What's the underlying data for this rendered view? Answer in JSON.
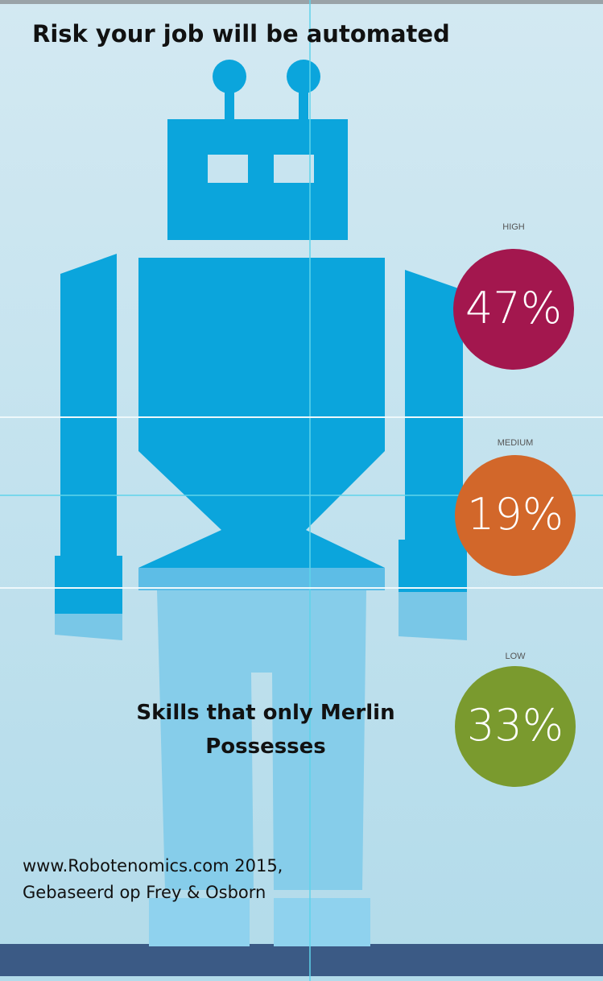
{
  "title": "Risk your job will be automated",
  "risk_levels": [
    {
      "label": "HIGH",
      "value": "47%",
      "color": "#a3174e"
    },
    {
      "label": "MEDIUM",
      "value": "19%",
      "color": "#d2672a"
    },
    {
      "label": "LOW",
      "value": "33%",
      "color": "#7a9a2e"
    }
  ],
  "caption": [
    "Skills that only Merlin",
    "Possesses"
  ],
  "source": [
    "www.Robotenomics.com 2015,",
    "Gebaseerd op Frey & Osborn"
  ]
}
